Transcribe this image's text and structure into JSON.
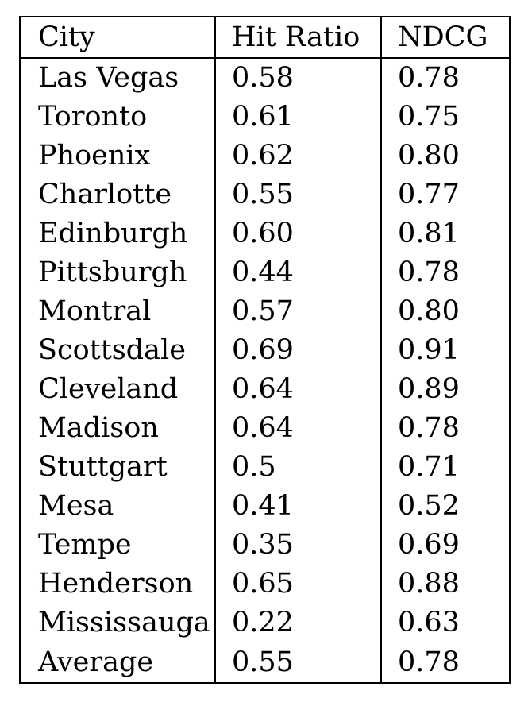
{
  "table": {
    "headers": [
      "City",
      "Hit Ratio",
      "NDCG"
    ],
    "rows": [
      [
        "Las Vegas",
        "0.58",
        "0.78"
      ],
      [
        "Toronto",
        "0.61",
        "0.75"
      ],
      [
        "Phoenix",
        "0.62",
        "0.80"
      ],
      [
        "Charlotte",
        "0.55",
        "0.77"
      ],
      [
        "Edinburgh",
        "0.60",
        "0.81"
      ],
      [
        "Pittsburgh",
        "0.44",
        "0.78"
      ],
      [
        "Montral",
        "0.57",
        "0.80"
      ],
      [
        "Scottsdale",
        "0.69",
        "0.91"
      ],
      [
        "Cleveland",
        "0.64",
        "0.89"
      ],
      [
        "Madison",
        "0.64",
        "0.78"
      ],
      [
        "Stuttgart",
        "0.5",
        "0.71"
      ],
      [
        "Mesa",
        "0.41",
        "0.52"
      ],
      [
        "Tempe",
        "0.35",
        "0.69"
      ],
      [
        "Henderson",
        "0.65",
        "0.88"
      ],
      [
        "Mississauga",
        "0.22",
        "0.63"
      ],
      [
        "Average",
        "0.55",
        "0.78"
      ]
    ]
  }
}
